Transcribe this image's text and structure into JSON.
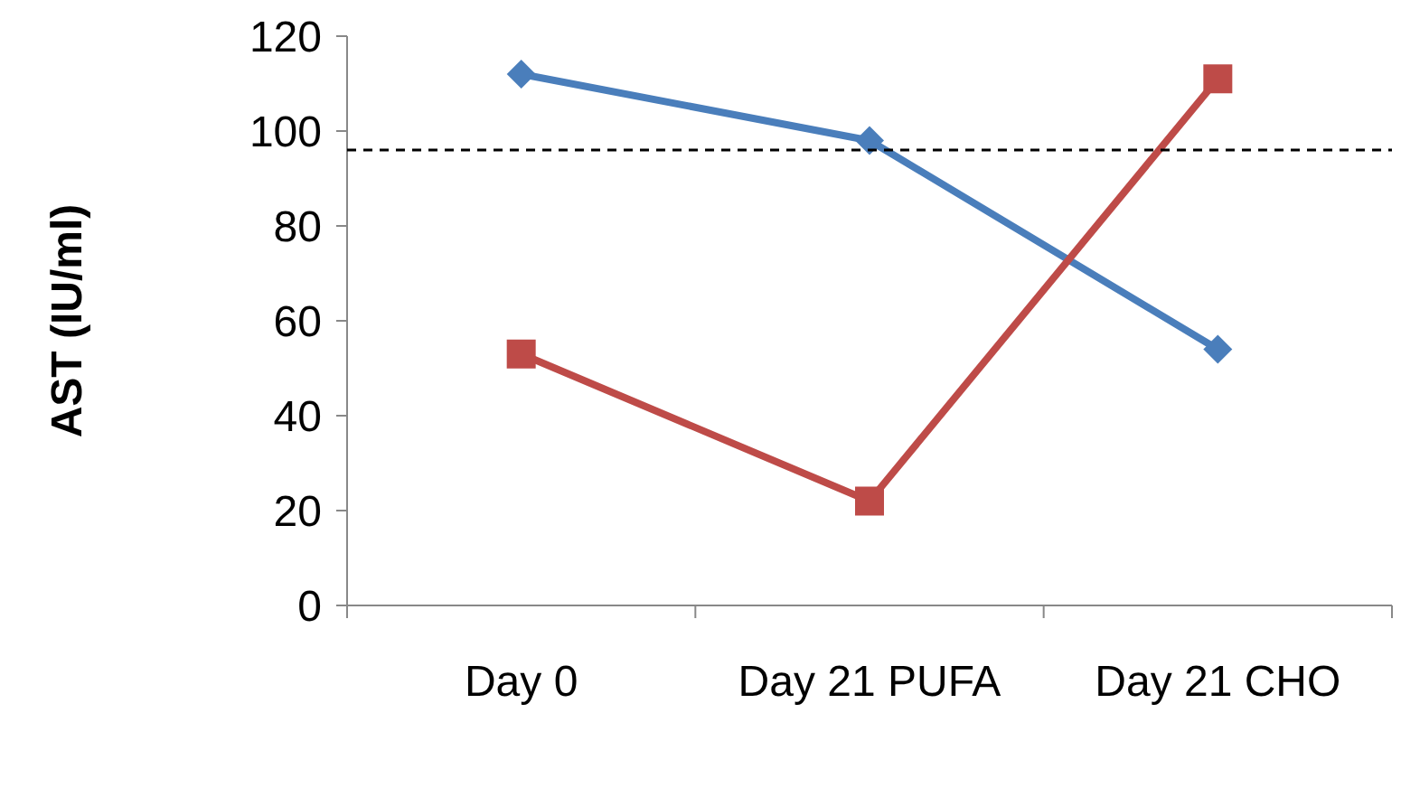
{
  "chart_data": {
    "type": "line",
    "ylabel": "AST (IU/ml)",
    "categories": [
      "Day 0",
      "Day 21 PUFA",
      "Day 21 CHO"
    ],
    "series": [
      {
        "color": "#4a7ebb",
        "marker": "diamond",
        "values": [
          112,
          98,
          54
        ]
      },
      {
        "color": "#be4b48",
        "marker": "square",
        "values": [
          53,
          22,
          111
        ]
      }
    ],
    "ylim": [
      0,
      120
    ],
    "yticks": [
      0,
      20,
      40,
      60,
      80,
      100,
      120
    ],
    "ref_lines": [
      {
        "axis": "y",
        "value": 96,
        "color": "#000000",
        "line_style": "dashed"
      }
    ]
  }
}
